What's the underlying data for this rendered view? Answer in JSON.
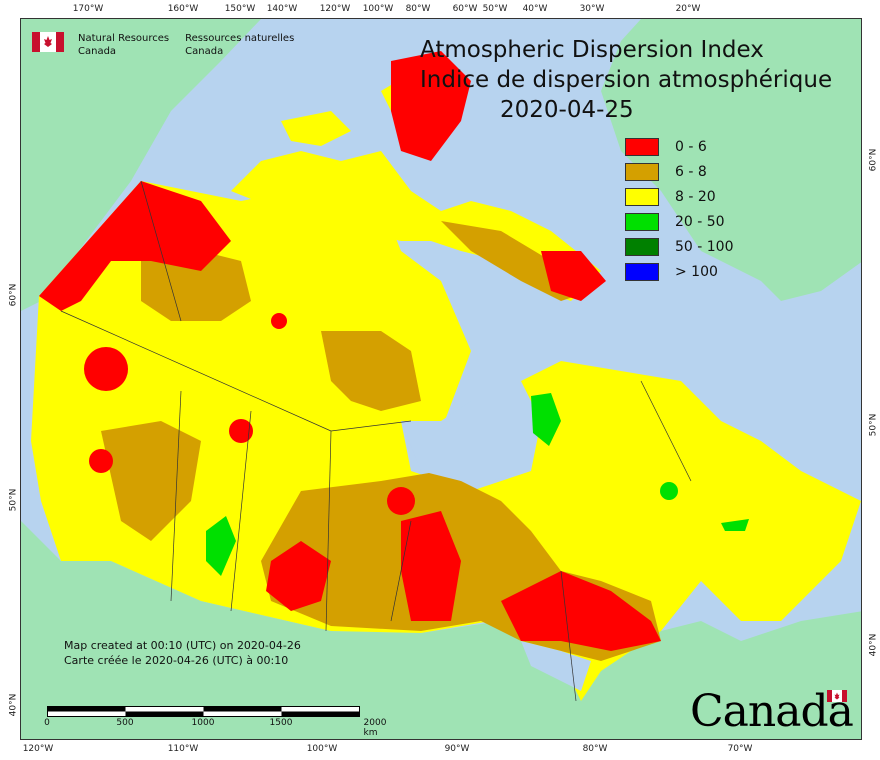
{
  "title": {
    "en": "Atmospheric Dispersion Index",
    "fr": "Indice de dispersion atmosphérique",
    "date": "2020-04-25"
  },
  "legend": [
    {
      "label": "0 - 6",
      "color": "#ff0000"
    },
    {
      "label": "6 - 8",
      "color": "#d4a000"
    },
    {
      "label": "8 - 20",
      "color": "#ffff00"
    },
    {
      "label": "20 - 50",
      "color": "#00e000"
    },
    {
      "label": "50 - 100",
      "color": "#008000"
    },
    {
      "label": "> 100",
      "color": "#0000ff"
    }
  ],
  "agency": {
    "en_line1": "Natural Resources",
    "en_line2": "Canada",
    "fr_line1": "Ressources naturelles",
    "fr_line2": "Canada"
  },
  "credit": {
    "en": "Map created at 00:10 (UTC) on 2020-04-26",
    "fr": "Carte créée le 2020-04-26 (UTC) à 00:10"
  },
  "scale_bar": {
    "labels": [
      "0",
      "500",
      "1000",
      "1500",
      "2000 km"
    ]
  },
  "graticule": {
    "top": [
      "170°W",
      "160°W",
      "150°W",
      "140°W",
      "120°W",
      "100°W",
      "80°W",
      "60°W",
      "50°W",
      "40°W",
      "30°W",
      "20°W"
    ],
    "bottom": [
      "120°W",
      "110°W",
      "100°W",
      "90°W",
      "80°W",
      "70°W"
    ],
    "left": [
      "60°N",
      "50°N",
      "40°N"
    ],
    "right": [
      "60°N",
      "50°N",
      "40°N"
    ]
  },
  "wordmark": "Canada",
  "colors": {
    "water": "#b7d3ef",
    "foreign_land": "#9fe3b4",
    "low": "#ff0000",
    "moderate": "#d4a000",
    "good": "#ffff00",
    "very_good": "#00e000"
  }
}
